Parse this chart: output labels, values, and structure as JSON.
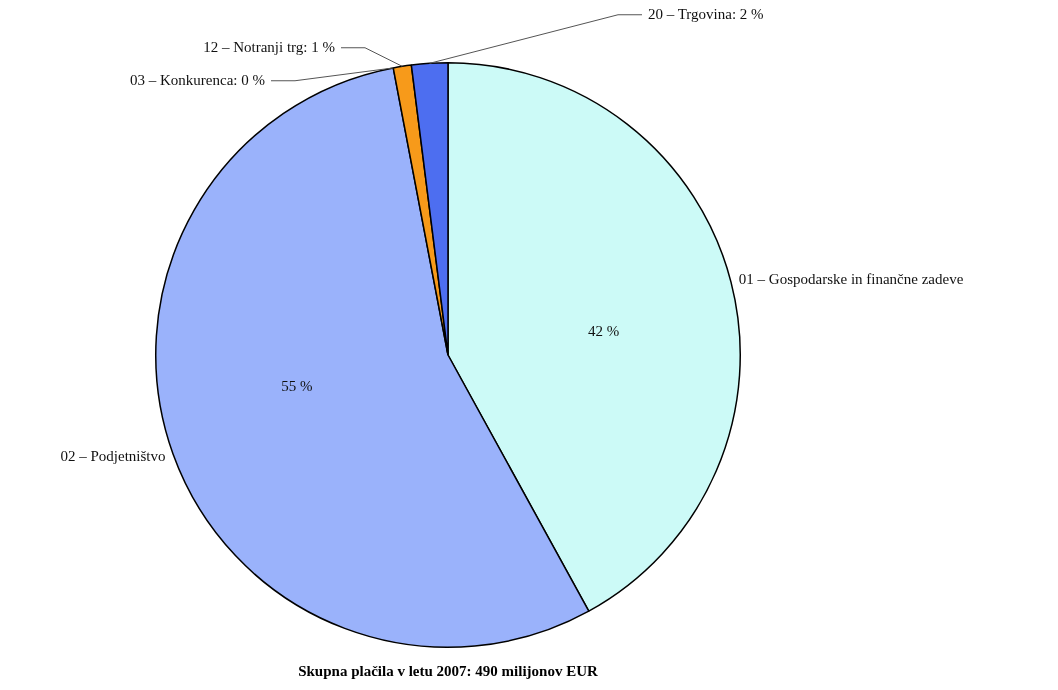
{
  "chart_data": {
    "type": "pie",
    "title": "Skupna plačila v letu 2007: 490 milijonov EUR",
    "categories": [
      "01 – Gospodarske in finančne zadeve",
      "02 – Podjetništvo",
      "03 – Konkurenca",
      "12 – Notranji trg",
      "20 – Trgovina"
    ],
    "values": [
      42,
      55,
      0,
      1,
      2
    ],
    "colors": [
      "#ccfaf7",
      "#9ab2fb",
      "#7f7f7f",
      "#f79a1a",
      "#4d6ef0"
    ],
    "value_labels": [
      "42 %",
      "55 %",
      ": 0 %",
      ": 1 %",
      ": 2 %"
    ]
  }
}
